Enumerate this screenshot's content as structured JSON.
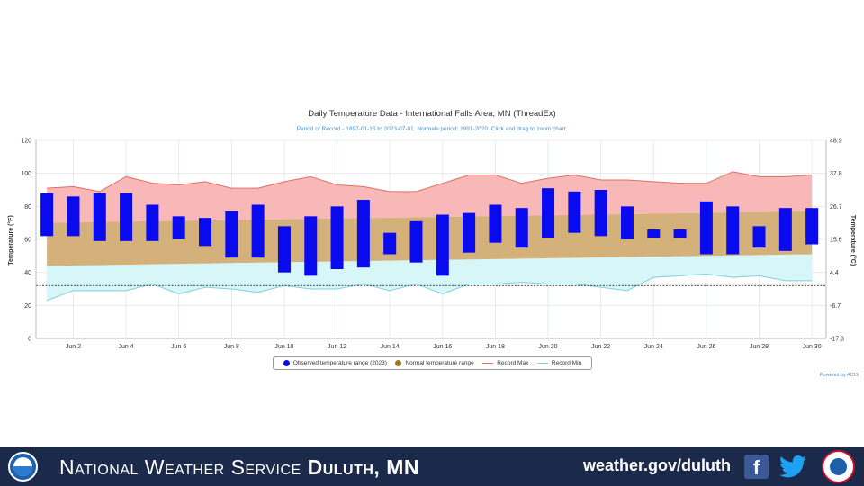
{
  "chart_data": {
    "type": "bar",
    "title": "Daily Temperature Data - International Falls Area, MN (ThreadEx)",
    "subtitle": "Period of Record - 1897-01-15 to 2023-07-01. Normals period: 1991-2020. Click and drag to zoom chart.",
    "ylabel": "Temperature (°F)",
    "y2label": "Temperature (°C)",
    "ylim": [
      0,
      120
    ],
    "yticks": [
      0,
      20,
      40,
      60,
      80,
      100,
      120
    ],
    "y2ticks": [
      "-17.8",
      "-6.7",
      "4.4",
      "15.6",
      "26.7",
      "37.8",
      "48.9"
    ],
    "x_tick_labels": [
      "Jun 2",
      "Jun 4",
      "Jun 6",
      "Jun 8",
      "Jun 10",
      "Jun 12",
      "Jun 14",
      "Jun 16",
      "Jun 18",
      "Jun 20",
      "Jun 22",
      "Jun 24",
      "Jun 26",
      "Jun 28",
      "Jun 30"
    ],
    "days": [
      1,
      2,
      3,
      4,
      5,
      6,
      7,
      8,
      9,
      10,
      11,
      12,
      13,
      14,
      15,
      16,
      17,
      18,
      19,
      20,
      21,
      22,
      23,
      24,
      25,
      26,
      27,
      28,
      29,
      30
    ],
    "observed_2023": {
      "name": "Observed temperature range (2023)",
      "low": [
        62,
        62,
        59,
        59,
        59,
        60,
        56,
        49,
        49,
        40,
        38,
        42,
        43,
        51,
        46,
        38,
        52,
        58,
        55,
        61,
        64,
        62,
        60,
        61,
        61,
        51,
        51,
        55,
        53,
        57
      ],
      "high": [
        88,
        86,
        88,
        88,
        81,
        74,
        73,
        77,
        81,
        68,
        74,
        80,
        84,
        64,
        71,
        75,
        76,
        81,
        79,
        91,
        89,
        90,
        80,
        66,
        66,
        83,
        80,
        68,
        79,
        79
      ]
    },
    "normal_range": {
      "name": "Normal temperature range",
      "low": [
        44,
        51
      ],
      "high": [
        70,
        77
      ]
    },
    "record_max": {
      "name": "Record Max",
      "values": [
        91,
        92,
        89,
        98,
        94,
        93,
        95,
        91,
        91,
        95,
        98,
        93,
        92,
        89,
        89,
        94,
        99,
        99,
        94,
        97,
        99,
        96,
        96,
        95,
        94,
        94,
        101,
        98,
        98,
        99
      ]
    },
    "record_min": {
      "name": "Record Min",
      "values": [
        23,
        29,
        29,
        29,
        33,
        27,
        31,
        30,
        28,
        32,
        30,
        30,
        33,
        29,
        33,
        27,
        33,
        33,
        34,
        33,
        33,
        31,
        29,
        37,
        38,
        39,
        37,
        38,
        35,
        35
      ]
    },
    "reference_line": 32,
    "colors": {
      "observed": "#0a0aee",
      "normal": "#d4b07a",
      "record_max_fill": "#f9b8b8",
      "record_max_line": "#e07060",
      "record_min_fill": "#d6f6f8",
      "record_min_line": "#7fd0dc",
      "normal_legend": "#a07820"
    }
  },
  "footer": {
    "org_prefix": "National Weather Service",
    "org_office": "Duluth, MN",
    "url": "weather.gov/duluth",
    "facebook_glyph": "f"
  },
  "powered_by": "Powered by ACIS"
}
